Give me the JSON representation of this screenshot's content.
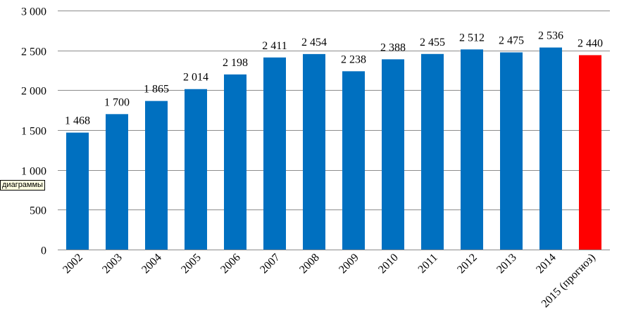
{
  "chart_data": {
    "type": "bar",
    "categories": [
      "2002",
      "2003",
      "2004",
      "2005",
      "2006",
      "2007",
      "2008",
      "2009",
      "2010",
      "2011",
      "2012",
      "2013",
      "2014",
      "2015 (прогноз)"
    ],
    "values": [
      1468,
      1700,
      1865,
      2014,
      2198,
      2411,
      2454,
      2238,
      2388,
      2455,
      2512,
      2475,
      2536,
      2440
    ],
    "data_labels": [
      "1 468",
      "1 700",
      "1 865",
      "2 014",
      "2 198",
      "2 411",
      "2 454",
      "2 238",
      "2 388",
      "2 455",
      "2 512",
      "2 475",
      "2 536",
      "2 440"
    ],
    "y_ticks": [
      0,
      500,
      1000,
      1500,
      2000,
      2500,
      3000
    ],
    "y_tick_labels": [
      "0",
      "500",
      "1 000",
      "1 500",
      "2 000",
      "2 500",
      "3 000"
    ],
    "ylim": [
      0,
      3000
    ],
    "grid": "horizontal",
    "colors": {
      "bar": "#0070c0",
      "forecast_bar": "#ff0000",
      "grid": "#8c8c8c"
    },
    "forecast_index": 13
  },
  "tooltip": {
    "text": "диаграммы"
  }
}
